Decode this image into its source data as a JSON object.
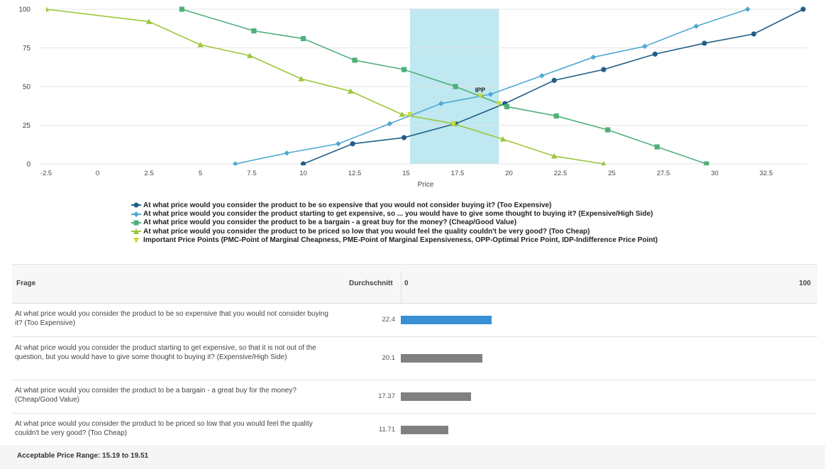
{
  "colors": {
    "too_expensive": "#1f5f85",
    "expensive": "#4ea8d3",
    "cheap": "#4fb07a",
    "too_cheap": "#9cc63c",
    "important": "#c9dc3c",
    "range_fill": "#bfe8f0",
    "bar_highlight": "#3a8fd6",
    "bar_default": "#808080"
  },
  "chart_data": {
    "type": "line",
    "xlabel": "Price",
    "ylabel": "",
    "xlim": [
      -2.5,
      34.5
    ],
    "ylim": [
      0,
      100
    ],
    "xticks": [
      -2.5,
      0,
      2.5,
      5,
      7.5,
      10,
      12.5,
      15,
      17.5,
      20,
      22.5,
      25,
      27.5,
      30,
      32.5
    ],
    "yticks": [
      0,
      25,
      50,
      75,
      100
    ],
    "grid": "horizontal",
    "shaded_range": [
      15.19,
      19.51
    ],
    "series": [
      {
        "name": "At what price would you consider the product to be so expensive that you would not consider buying it? (Too Expensive)",
        "key": "too_expensive",
        "marker": "circle",
        "x": [
          10,
          12.4,
          14.9,
          17.4,
          19.8,
          22.2,
          24.6,
          27.1,
          29.5,
          31.9,
          34.3
        ],
        "y": [
          0,
          13,
          17,
          26,
          39,
          54,
          61,
          71,
          78,
          84,
          100
        ]
      },
      {
        "name": "At what price would you consider the product starting to get expensive, so ... you would have to give some thought to buying it? (Expensive/High Side)",
        "key": "expensive",
        "marker": "diamond",
        "x": [
          6.7,
          9.2,
          11.7,
          14.2,
          16.7,
          19.1,
          21.6,
          24.1,
          26.6,
          29.1,
          31.6
        ],
        "y": [
          0,
          7,
          13,
          26,
          39,
          45,
          57,
          69,
          76,
          89,
          100
        ]
      },
      {
        "name": "At what price would you consider the product to be a bargain - a great buy for the money? (Cheap/Good Value)",
        "key": "cheap",
        "marker": "square",
        "x": [
          4.1,
          7.6,
          10.0,
          12.5,
          14.9,
          17.4,
          19.9,
          22.3,
          24.8,
          27.2,
          29.6
        ],
        "y": [
          100,
          86,
          81,
          67,
          61,
          50,
          37,
          31,
          22,
          11,
          0
        ]
      },
      {
        "name": "At what price would you consider the product to be priced so low that you would feel the quality couldn't be very good? (Too Cheap)",
        "key": "too_cheap",
        "marker": "triangle",
        "x": [
          -2.5,
          2.5,
          5.0,
          7.4,
          9.9,
          12.3,
          14.8,
          17.3,
          19.7,
          22.2,
          24.6
        ],
        "y": [
          100,
          92,
          77,
          70,
          55,
          47,
          32,
          26,
          16,
          5,
          0
        ]
      },
      {
        "name": "Important Price Points (PMC-Point of Marginal Cheapness, PME-Point of Marginal Expensiveness, OPP-Optimal Price Point, IDP-Indifference Price Point)",
        "key": "important",
        "marker": "triangle-down",
        "x": [
          15.19,
          17.3,
          18.6,
          19.51
        ],
        "y": [
          32,
          26,
          44,
          39
        ]
      }
    ],
    "annotations": [
      {
        "text": "IPP",
        "x": 18.6,
        "y": 44
      }
    ]
  },
  "table": {
    "header": {
      "question": "Frage",
      "average": "Durchschnitt",
      "axis_min": "0",
      "axis_max": "100"
    },
    "rows": [
      {
        "question": "At what price would you consider the product to be so expensive that you would not consider buying it? (Too Expensive)",
        "average": "22.4",
        "value": 22.4,
        "highlight": true
      },
      {
        "question": "At what price would you consider the product starting to get expensive, so that it is not out of the question, but you would have to give some thought to buying it? (Expensive/High Side)",
        "average": "20.1",
        "value": 20.1,
        "highlight": false
      },
      {
        "question": "At what price would you consider the product to be a bargain - a great buy for the money? (Cheap/Good Value)",
        "average": "17.37",
        "value": 17.37,
        "highlight": false
      },
      {
        "question": "At what price would you consider the product to be priced so low that you would feel the quality couldn't be very good? (Too Cheap)",
        "average": "11.71",
        "value": 11.71,
        "highlight": false
      }
    ]
  },
  "footer": {
    "range_text": "Acceptable Price Range: 15.19 to 19.51"
  }
}
